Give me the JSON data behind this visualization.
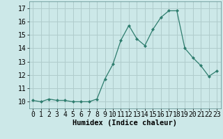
{
  "x": [
    0,
    1,
    2,
    3,
    4,
    5,
    6,
    7,
    8,
    9,
    10,
    11,
    12,
    13,
    14,
    15,
    16,
    17,
    18,
    19,
    20,
    21,
    22,
    23
  ],
  "y": [
    10.1,
    10.0,
    10.2,
    10.1,
    10.1,
    10.0,
    10.0,
    10.0,
    10.2,
    11.7,
    12.8,
    14.6,
    15.7,
    14.7,
    14.2,
    15.4,
    16.3,
    16.8,
    16.8,
    14.0,
    13.3,
    12.7,
    11.9,
    12.3
  ],
  "line_color": "#2e7d6e",
  "marker": "D",
  "marker_size": 2.0,
  "bg_color": "#cce8e8",
  "grid_color": "#b0cccc",
  "xlabel": "Humidex (Indice chaleur)",
  "xlabel_fontsize": 7.5,
  "tick_fontsize": 7,
  "ylim": [
    9.5,
    17.5
  ],
  "yticks": [
    10,
    11,
    12,
    13,
    14,
    15,
    16,
    17
  ],
  "xticks": [
    0,
    1,
    2,
    3,
    4,
    5,
    6,
    7,
    8,
    9,
    10,
    11,
    12,
    13,
    14,
    15,
    16,
    17,
    18,
    19,
    20,
    21,
    22,
    23
  ],
  "xlim": [
    -0.5,
    23.5
  ]
}
